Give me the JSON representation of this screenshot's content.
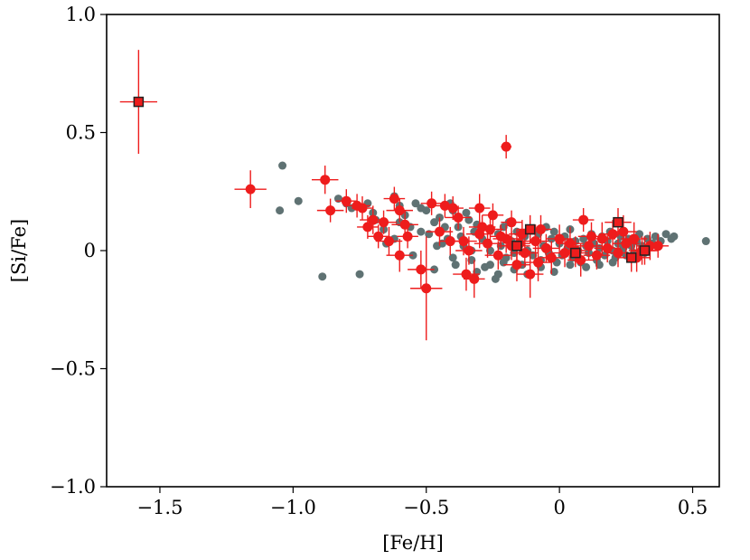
{
  "chart_data": {
    "type": "scatter",
    "xlabel": "[Fe/H]",
    "ylabel": "[Si/Fe]",
    "xlim": [
      -1.7,
      0.6
    ],
    "ylim": [
      -1.0,
      1.0
    ],
    "grid": false,
    "x_ticks": [
      {
        "value": -1.5,
        "label": "−1.5"
      },
      {
        "value": -1.0,
        "label": "−1.0"
      },
      {
        "value": -0.5,
        "label": "−0.5"
      },
      {
        "value": 0.0,
        "label": "0"
      },
      {
        "value": 0.5,
        "label": "0.5"
      }
    ],
    "y_ticks": [
      {
        "value": -1.0,
        "label": "−1.0"
      },
      {
        "value": -0.5,
        "label": "−0.5"
      },
      {
        "value": 0.0,
        "label": "0"
      },
      {
        "value": 0.5,
        "label": "0.5"
      },
      {
        "value": 1.0,
        "label": "1.0"
      }
    ],
    "colors": {
      "comparison": "#5f7273",
      "sample": "#ee1c1c",
      "marker_edge": "#222222"
    },
    "series": [
      {
        "marker": "circle",
        "color": "#5f7273",
        "points": [
          [
            -1.04,
            0.36
          ],
          [
            -1.05,
            0.17
          ],
          [
            -0.98,
            0.21
          ],
          [
            -0.89,
            -0.11
          ],
          [
            -0.75,
            -0.1
          ],
          [
            -0.83,
            0.22
          ],
          [
            -0.8,
            0.2
          ],
          [
            -0.78,
            0.18
          ],
          [
            -0.72,
            0.2
          ],
          [
            -0.7,
            0.16
          ],
          [
            -0.69,
            0.13
          ],
          [
            -0.66,
            0.09
          ],
          [
            -0.65,
            0.03
          ],
          [
            -0.62,
            0.23
          ],
          [
            -0.6,
            0.19
          ],
          [
            -0.58,
            0.15
          ],
          [
            -0.56,
            0.1
          ],
          [
            -0.54,
            0.2
          ],
          [
            -0.52,
            0.18
          ],
          [
            -0.5,
            0.17
          ],
          [
            -0.49,
            0.07
          ],
          [
            -0.47,
            0.12
          ],
          [
            -0.45,
            0.14
          ],
          [
            -0.43,
            0.1
          ],
          [
            -0.42,
            0.05
          ],
          [
            -0.41,
            0.2
          ],
          [
            -0.4,
            0.17
          ],
          [
            -0.38,
            0.1
          ],
          [
            -0.37,
            0.06
          ],
          [
            -0.36,
            0.02
          ],
          [
            -0.35,
            0.16
          ],
          [
            -0.34,
            0.13
          ],
          [
            -0.33,
            -0.04
          ],
          [
            -0.32,
            0.08
          ],
          [
            -0.31,
            0.11
          ],
          [
            -0.3,
            0.18
          ],
          [
            -0.29,
            0.05
          ],
          [
            -0.28,
            -0.07
          ],
          [
            -0.27,
            0.03
          ],
          [
            -0.26,
            0.0
          ],
          [
            -0.25,
            0.15
          ],
          [
            -0.24,
            -0.12
          ],
          [
            -0.23,
            0.07
          ],
          [
            -0.22,
            0.02
          ],
          [
            -0.21,
            0.1
          ],
          [
            -0.2,
            -0.03
          ],
          [
            -0.19,
            0.12
          ],
          [
            -0.18,
            0.04
          ],
          [
            -0.17,
            -0.01
          ],
          [
            -0.16,
            0.08
          ],
          [
            -0.15,
            0.03
          ],
          [
            -0.14,
            -0.06
          ],
          [
            -0.13,
            0.06
          ],
          [
            -0.12,
            0.0
          ],
          [
            -0.11,
            0.09
          ],
          [
            -0.1,
            -0.02
          ],
          [
            -0.09,
            0.04
          ],
          [
            -0.08,
            0.07
          ],
          [
            -0.07,
            -0.04
          ],
          [
            -0.06,
            0.02
          ],
          [
            -0.05,
            0.1
          ],
          [
            -0.04,
            -0.01
          ],
          [
            -0.03,
            0.05
          ],
          [
            -0.02,
            0.08
          ],
          [
            -0.01,
            -0.05
          ],
          [
            0.0,
            0.03
          ],
          [
            0.01,
            -0.02
          ],
          [
            0.02,
            0.06
          ],
          [
            0.03,
            0.01
          ],
          [
            0.04,
            0.09
          ],
          [
            0.05,
            -0.03
          ],
          [
            0.06,
            0.04
          ],
          [
            0.07,
            0.0
          ],
          [
            0.08,
            -0.05
          ],
          [
            0.09,
            0.05
          ],
          [
            0.1,
            0.02
          ],
          [
            0.11,
            -0.01
          ],
          [
            0.12,
            0.07
          ],
          [
            0.13,
            0.03
          ],
          [
            0.14,
            -0.04
          ],
          [
            0.15,
            0.01
          ],
          [
            0.16,
            0.06
          ],
          [
            0.17,
            -0.02
          ],
          [
            0.18,
            0.04
          ],
          [
            0.19,
            0.08
          ],
          [
            0.2,
            0.0
          ],
          [
            0.21,
            -0.03
          ],
          [
            0.22,
            0.03
          ],
          [
            0.23,
            0.06
          ],
          [
            0.24,
            0.01
          ],
          [
            0.25,
            -0.02
          ],
          [
            0.26,
            0.05
          ],
          [
            0.27,
            0.02
          ],
          [
            0.28,
            -0.01
          ],
          [
            0.29,
            0.04
          ],
          [
            0.3,
            0.07
          ],
          [
            0.31,
            0.02
          ],
          [
            0.32,
            -0.01
          ],
          [
            0.33,
            0.05
          ],
          [
            0.35,
            0.03
          ],
          [
            0.36,
            0.06
          ],
          [
            0.38,
            0.04
          ],
          [
            0.4,
            0.07
          ],
          [
            0.42,
            0.05
          ],
          [
            0.43,
            0.06
          ],
          [
            0.55,
            0.04
          ],
          [
            -0.62,
            0.05
          ],
          [
            -0.55,
            -0.02
          ],
          [
            -0.47,
            -0.08
          ],
          [
            -0.44,
            0.03
          ],
          [
            -0.4,
            -0.03
          ],
          [
            -0.33,
            0.0
          ],
          [
            -0.26,
            -0.06
          ],
          [
            -0.21,
            -0.05
          ],
          [
            -0.17,
            -0.08
          ],
          [
            -0.12,
            -0.1
          ],
          [
            -0.07,
            -0.07
          ],
          [
            -0.02,
            -0.09
          ],
          [
            0.04,
            -0.06
          ],
          [
            0.1,
            -0.07
          ],
          [
            0.15,
            -0.06
          ],
          [
            0.2,
            -0.05
          ],
          [
            -0.6,
            0.12
          ],
          [
            -0.52,
            0.08
          ],
          [
            -0.46,
            0.02
          ],
          [
            -0.39,
            -0.06
          ],
          [
            -0.31,
            -0.09
          ],
          [
            -0.23,
            -0.1
          ]
        ]
      },
      {
        "marker": "circle",
        "color": "#ee1c1c",
        "points": [
          [
            -1.16,
            0.26,
            0.06,
            0.08
          ],
          [
            -0.88,
            0.3,
            0.05,
            0.06
          ],
          [
            -0.2,
            0.44,
            0.02,
            0.05
          ],
          [
            -0.86,
            0.17,
            0.05,
            0.05
          ],
          [
            -0.8,
            0.21,
            0.04,
            0.05
          ],
          [
            -0.76,
            0.19,
            0.05,
            0.05
          ],
          [
            -0.74,
            0.18,
            0.04,
            0.05
          ],
          [
            -0.72,
            0.1,
            0.04,
            0.05
          ],
          [
            -0.7,
            0.13,
            0.05,
            0.06
          ],
          [
            -0.68,
            0.06,
            0.04,
            0.05
          ],
          [
            -0.66,
            0.12,
            0.05,
            0.05
          ],
          [
            -0.64,
            0.04,
            0.05,
            0.06
          ],
          [
            -0.62,
            0.22,
            0.04,
            0.05
          ],
          [
            -0.6,
            0.17,
            0.05,
            0.05
          ],
          [
            -0.58,
            0.11,
            0.05,
            0.06
          ],
          [
            -0.57,
            0.06,
            0.04,
            0.05
          ],
          [
            -0.6,
            -0.02,
            0.05,
            0.07
          ],
          [
            -0.52,
            -0.08,
            0.05,
            0.08
          ],
          [
            -0.5,
            -0.16,
            0.06,
            0.22
          ],
          [
            -0.48,
            0.2,
            0.04,
            0.05
          ],
          [
            -0.45,
            0.08,
            0.05,
            0.06
          ],
          [
            -0.43,
            0.19,
            0.04,
            0.05
          ],
          [
            -0.4,
            0.18,
            0.04,
            0.05
          ],
          [
            -0.38,
            0.14,
            0.05,
            0.05
          ],
          [
            -0.36,
            0.04,
            0.05,
            0.06
          ],
          [
            -0.35,
            -0.1,
            0.05,
            0.07
          ],
          [
            -0.32,
            -0.12,
            0.04,
            0.08
          ],
          [
            -0.3,
            0.18,
            0.04,
            0.06
          ],
          [
            -0.29,
            0.1,
            0.05,
            0.05
          ],
          [
            -0.27,
            0.03,
            0.05,
            0.06
          ],
          [
            -0.25,
            0.15,
            0.04,
            0.05
          ],
          [
            -0.23,
            -0.02,
            0.05,
            0.06
          ],
          [
            -0.22,
            0.06,
            0.04,
            0.05
          ],
          [
            -0.2,
            0.05,
            0.05,
            0.06
          ],
          [
            -0.18,
            0.12,
            0.04,
            0.05
          ],
          [
            -0.16,
            -0.06,
            0.05,
            0.07
          ],
          [
            -0.14,
            0.07,
            0.05,
            0.06
          ],
          [
            -0.13,
            -0.01,
            0.05,
            0.06
          ],
          [
            -0.11,
            -0.1,
            0.05,
            0.1
          ],
          [
            -0.09,
            0.04,
            0.05,
            0.07
          ],
          [
            -0.07,
            0.09,
            0.04,
            0.06
          ],
          [
            -0.05,
            0.01,
            0.05,
            0.06
          ],
          [
            -0.03,
            -0.03,
            0.05,
            0.07
          ],
          [
            0.0,
            0.05,
            0.05,
            0.06
          ],
          [
            0.02,
            -0.01,
            0.05,
            0.06
          ],
          [
            0.04,
            0.03,
            0.05,
            0.07
          ],
          [
            0.06,
            0.0,
            0.04,
            0.06
          ],
          [
            0.09,
            0.13,
            0.04,
            0.05
          ],
          [
            0.11,
            0.02,
            0.05,
            0.06
          ],
          [
            0.14,
            -0.02,
            0.05,
            0.06
          ],
          [
            0.16,
            0.05,
            0.05,
            0.07
          ],
          [
            0.18,
            0.01,
            0.05,
            0.06
          ],
          [
            0.2,
            0.07,
            0.05,
            0.06
          ],
          [
            0.22,
            -0.01,
            0.04,
            0.06
          ],
          [
            0.25,
            0.03,
            0.05,
            0.06
          ],
          [
            0.28,
            0.05,
            0.05,
            0.07
          ],
          [
            0.31,
            0.0,
            0.05,
            0.06
          ],
          [
            0.34,
            0.02,
            0.05,
            0.06
          ],
          [
            0.37,
            0.02,
            0.04,
            0.05
          ],
          [
            -0.26,
            0.09,
            0.05,
            0.07
          ],
          [
            -0.34,
            0.0,
            0.05,
            0.06
          ],
          [
            -0.41,
            0.04,
            0.04,
            0.06
          ],
          [
            -0.18,
            0.02,
            0.05,
            0.06
          ],
          [
            0.12,
            0.06,
            0.05,
            0.06
          ],
          [
            0.24,
            0.08,
            0.05,
            0.07
          ],
          [
            -0.08,
            -0.05,
            0.05,
            0.08
          ],
          [
            -0.3,
            0.07,
            0.05,
            0.06
          ],
          [
            0.08,
            -0.04,
            0.05,
            0.07
          ],
          [
            -0.15,
            0.03,
            0.04,
            0.05
          ],
          [
            0.29,
            -0.03,
            0.05,
            0.06
          ]
        ]
      },
      {
        "marker": "square",
        "color": "#ee1c1c",
        "points": [
          [
            -1.58,
            0.63,
            0.07,
            0.22
          ],
          [
            -0.11,
            0.09,
            0.05,
            0.06
          ],
          [
            -0.16,
            0.02,
            0.05,
            0.07
          ],
          [
            0.06,
            -0.01,
            0.05,
            0.06
          ],
          [
            0.22,
            0.12,
            0.05,
            0.06
          ],
          [
            0.27,
            -0.03,
            0.05,
            0.06
          ],
          [
            0.32,
            0.0,
            0.05,
            0.06
          ]
        ]
      }
    ]
  }
}
